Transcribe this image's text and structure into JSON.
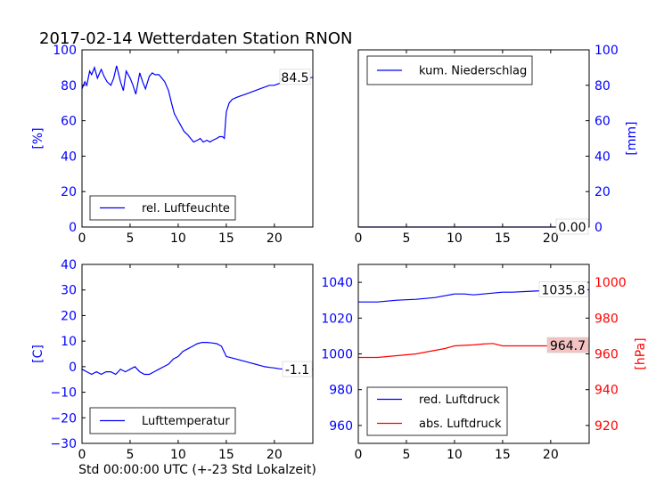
{
  "figure_title": "2017-02-14 Wetterdaten Station RNON",
  "colors": {
    "blue": "#0000ff",
    "red": "#ff0000",
    "anno_box": "#f4c2c2",
    "axis": "#000000"
  },
  "chart_data": [
    {
      "id": "humidity",
      "type": "line",
      "xlim": [
        0,
        24
      ],
      "ylim": [
        0,
        100
      ],
      "xticks": [
        0,
        5,
        10,
        15,
        20
      ],
      "yticks": [
        0,
        20,
        40,
        60,
        80,
        100
      ],
      "ylabel": "[%]",
      "ylabel_color": "#0000ff",
      "yaxis_side": "left",
      "ytick_color": "#0000ff",
      "show_xticklabels": true,
      "show_yticklabels": true,
      "series": [
        {
          "name": "rel. Luftfeuchte",
          "color": "#0000ff",
          "x": [
            0,
            0.3,
            0.5,
            0.8,
            1.0,
            1.3,
            1.6,
            2.0,
            2.3,
            2.6,
            3.0,
            3.3,
            3.6,
            4.0,
            4.3,
            4.6,
            5.0,
            5.3,
            5.6,
            6.0,
            6.3,
            6.6,
            7.0,
            7.3,
            7.6,
            8.0,
            8.3,
            8.6,
            9.0,
            9.3,
            9.6,
            10.0,
            10.3,
            10.6,
            11.0,
            11.3,
            11.6,
            12.0,
            12.3,
            12.6,
            13.0,
            13.3,
            13.6,
            14.0,
            14.3,
            14.6,
            14.8,
            15.0,
            15.3,
            15.6,
            16.0,
            16.5,
            17.0,
            17.5,
            18.0,
            18.5,
            19.0,
            19.5,
            20.0,
            20.5,
            21.0,
            21.5,
            22.0,
            22.5,
            23.0,
            23.5,
            24.0
          ],
          "y": [
            78,
            82,
            80,
            88,
            86,
            90,
            84,
            89,
            85,
            82,
            80,
            84,
            91,
            82,
            77,
            88,
            84,
            80,
            75,
            87,
            82,
            78,
            85,
            87,
            86,
            86,
            84,
            82,
            77,
            70,
            64,
            60,
            57,
            54,
            52,
            50,
            48,
            49,
            50,
            48,
            49,
            48,
            49,
            50,
            51,
            51,
            50,
            65,
            70,
            72,
            73,
            74,
            75,
            76,
            77,
            78,
            79,
            80,
            80,
            81,
            82,
            83,
            84,
            84,
            85,
            84,
            84.5
          ]
        }
      ],
      "legend": {
        "entries": [
          "rel. Luftfeuchte"
        ],
        "placement": "lower-center"
      },
      "annotations": [
        {
          "text": "84.5",
          "color": "#ffffff",
          "y": 84.5
        }
      ]
    },
    {
      "id": "precipitation",
      "type": "line",
      "xlim": [
        0,
        24
      ],
      "ylim": [
        0,
        100
      ],
      "xticks": [
        0,
        5,
        10,
        15,
        20
      ],
      "yticks": [
        0,
        20,
        40,
        60,
        80,
        100
      ],
      "ylabel": "[mm]",
      "ylabel_color": "#0000ff",
      "yaxis_side": "right",
      "ytick_color": "#0000ff",
      "show_xticklabels": true,
      "show_yticklabels": true,
      "series": [
        {
          "name": "kum. Niederschlag",
          "color": "#0000ff",
          "x": [
            0,
            24
          ],
          "y": [
            0,
            0
          ]
        }
      ],
      "legend": {
        "entries": [
          "kum. Niederschlag"
        ],
        "placement": "upper-left"
      },
      "annotations": [
        {
          "text": "0.00",
          "color": "#ffffff",
          "y": 0
        }
      ]
    },
    {
      "id": "temperature",
      "type": "line",
      "xlim": [
        0,
        24
      ],
      "ylim": [
        -30,
        40
      ],
      "xticks": [
        0,
        5,
        10,
        15,
        20
      ],
      "yticks": [
        -30,
        -20,
        -10,
        0,
        10,
        20,
        30,
        40
      ],
      "ylabel": "[C]",
      "ylabel_color": "#0000ff",
      "yaxis_side": "left",
      "ytick_color": "#0000ff",
      "xlabel": "Std 00:00:00 UTC (+-23 Std Lokalzeit)",
      "show_xticklabels": true,
      "show_yticklabels": true,
      "series": [
        {
          "name": "Lufttemperatur",
          "color": "#0000ff",
          "x": [
            0,
            0.5,
            1.0,
            1.5,
            2.0,
            2.5,
            3.0,
            3.5,
            4.0,
            4.5,
            5.0,
            5.5,
            6.0,
            6.5,
            7.0,
            7.5,
            8.0,
            8.5,
            9.0,
            9.5,
            10.0,
            10.5,
            11.0,
            11.5,
            12.0,
            12.5,
            13.0,
            13.5,
            14.0,
            14.5,
            15.0,
            15.5,
            16.0,
            16.5,
            17.0,
            17.5,
            18.0,
            18.5,
            19.0,
            19.5,
            20.0,
            20.5,
            21.0,
            21.5,
            22.0,
            22.5,
            23.0,
            23.5,
            24.0
          ],
          "y": [
            -1,
            -2,
            -3,
            -2,
            -3,
            -2,
            -2,
            -3,
            -1,
            -2,
            -1,
            0,
            -2,
            -3,
            -3,
            -2,
            -1,
            0,
            1,
            3,
            4,
            6,
            7,
            8,
            9,
            9.5,
            9.5,
            9.3,
            9,
            8,
            4,
            3.5,
            3,
            2.5,
            2,
            1.5,
            1,
            0.5,
            0,
            -0.3,
            -0.5,
            -0.8,
            -1,
            -1,
            -1.2,
            -1.1,
            -1,
            -1.1,
            -1.1
          ]
        }
      ],
      "legend": {
        "entries": [
          "Lufttemperatur"
        ],
        "placement": "lower-center"
      },
      "annotations": [
        {
          "text": "-1.1",
          "color": "#ffffff",
          "y": -1.1
        }
      ]
    },
    {
      "id": "pressure",
      "type": "line",
      "xlim": [
        0,
        24
      ],
      "ylim": [
        950,
        1050
      ],
      "xticks": [
        0,
        5,
        10,
        15,
        20
      ],
      "yticks": [
        960,
        980,
        1000,
        1020,
        1040
      ],
      "ylabel": "",
      "ylabel_color": "#0000ff",
      "yaxis_side": "left",
      "ytick_color": "#0000ff",
      "secondary_y": {
        "label": "[hPa]",
        "color": "#ff0000",
        "ylim": [
          910,
          1010
        ],
        "ticks": [
          920,
          940,
          960,
          980,
          1000
        ]
      },
      "show_xticklabels": true,
      "show_yticklabels": true,
      "series": [
        {
          "name": "red. Luftdruck",
          "color": "#0000ff",
          "axis": "left",
          "x": [
            0,
            2,
            4,
            6,
            8,
            9,
            10,
            11,
            12,
            13,
            14,
            15,
            16,
            18,
            20,
            22,
            24
          ],
          "y": [
            1029,
            1029,
            1030,
            1030.5,
            1031.5,
            1032.5,
            1033.5,
            1033.5,
            1033,
            1033.5,
            1034,
            1034.5,
            1034.5,
            1035,
            1035.5,
            1035.8,
            1035.8
          ]
        },
        {
          "name": "abs. Luftdruck",
          "color": "#ff0000",
          "axis": "right",
          "x": [
            0,
            1,
            2,
            3,
            4,
            5,
            6,
            7,
            8,
            9,
            10,
            11,
            12,
            13,
            14,
            15,
            16,
            18,
            20,
            22,
            24
          ],
          "y": [
            958,
            958,
            958,
            958.5,
            959,
            959.5,
            960,
            961,
            962,
            963,
            964.5,
            964.8,
            965,
            965.5,
            965.8,
            964.5,
            964.5,
            964.5,
            964.5,
            964.7,
            964.7
          ]
        }
      ],
      "legend": {
        "entries": [
          "red. Luftdruck",
          "abs. Luftdruck"
        ],
        "placement": "lower-left"
      },
      "annotations": [
        {
          "text": "1035.8",
          "color": "#ffffff",
          "y": 1035.8,
          "axis": "left"
        },
        {
          "text": "964.7",
          "color": "#f4c2c2",
          "y": 964.7,
          "axis": "right"
        }
      ]
    }
  ]
}
